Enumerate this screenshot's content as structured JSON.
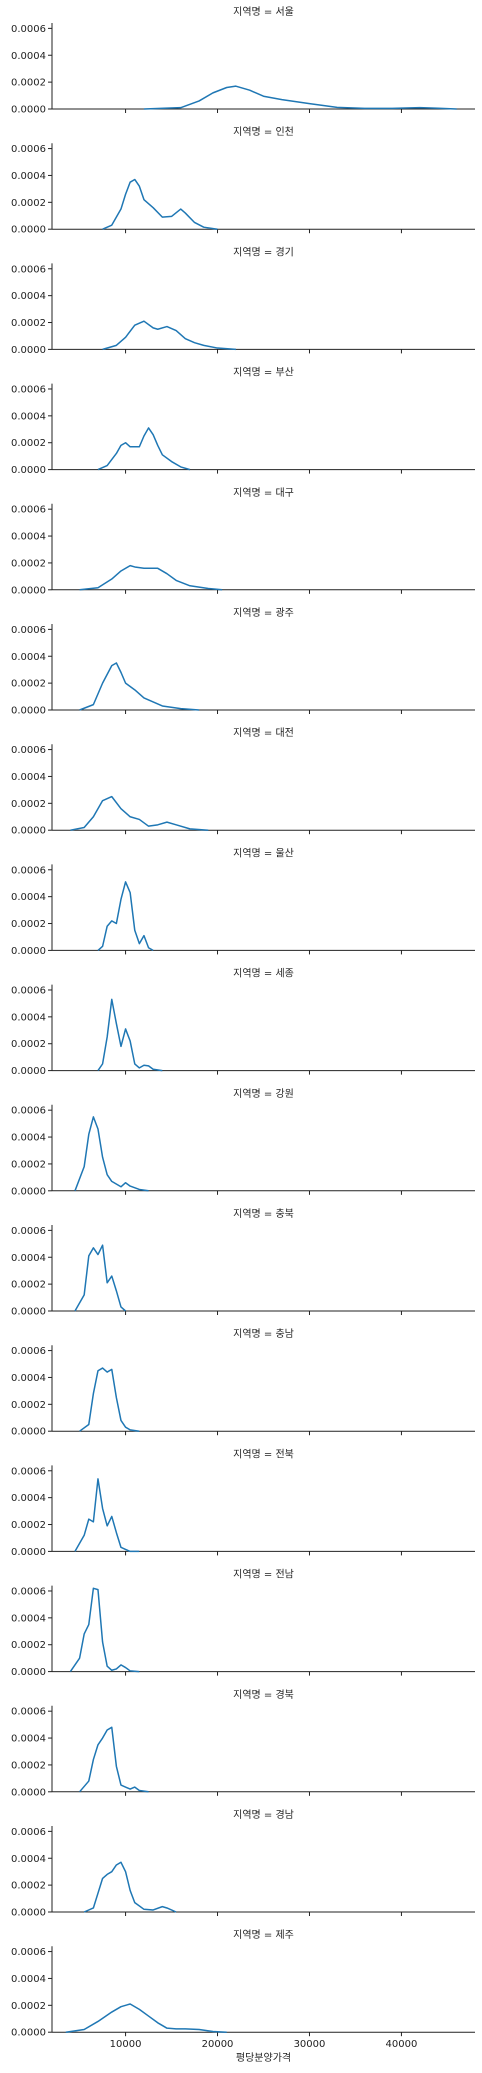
{
  "chart_data": {
    "type": "line",
    "facet_label": "지역명",
    "xlabel": "평당분양가격",
    "ylabel": "",
    "xlim": [
      2000,
      48000
    ],
    "ylim": [
      0,
      0.00064
    ],
    "x_ticks": [
      10000,
      20000,
      30000,
      40000
    ],
    "x_tick_labels": [
      "10000",
      "20000",
      "30000",
      "40000"
    ],
    "y_ticks": [
      0,
      0.0002,
      0.0004,
      0.0006
    ],
    "y_tick_labels": [
      "0.0000",
      "0.0002",
      "0.0004",
      "0.0006"
    ],
    "line_color": "#1f77b4",
    "grid": false,
    "panels": [
      {
        "title": "지역명 = 서울",
        "x": [
          12000,
          16000,
          18000,
          19500,
          21000,
          22000,
          23500,
          25000,
          27000,
          30000,
          33000,
          36000,
          39000,
          42000,
          44000,
          46000
        ],
        "y": [
          0,
          1e-05,
          6e-05,
          0.00012,
          0.00016,
          0.00017,
          0.00014,
          9.5e-05,
          7e-05,
          4e-05,
          1.2e-05,
          5e-06,
          5e-06,
          1e-05,
          6e-06,
          0
        ]
      },
      {
        "title": "지역명 = 인천",
        "x": [
          7500,
          8500,
          9500,
          10000,
          10500,
          11000,
          11500,
          12000,
          13000,
          14000,
          15000,
          16000,
          16500,
          17500,
          18500,
          20000
        ],
        "y": [
          0,
          3e-05,
          0.00015,
          0.00026,
          0.00035,
          0.00037,
          0.00032,
          0.00022,
          0.00016,
          9e-05,
          9.5e-05,
          0.00015,
          0.00012,
          5e-05,
          1.5e-05,
          0
        ]
      },
      {
        "title": "지역명 = 경기",
        "x": [
          7500,
          9000,
          10000,
          11000,
          12000,
          13000,
          13500,
          14500,
          15500,
          16500,
          17500,
          18500,
          20000,
          22000
        ],
        "y": [
          0,
          3e-05,
          9e-05,
          0.00018,
          0.00021,
          0.00016,
          0.00015,
          0.00017,
          0.00014,
          8e-05,
          5e-05,
          3e-05,
          1e-05,
          0
        ]
      },
      {
        "title": "지역명 = 부산",
        "x": [
          7000,
          8000,
          9000,
          9500,
          10000,
          10500,
          11500,
          12000,
          12500,
          13000,
          13500,
          14000,
          15000,
          16000,
          17000
        ],
        "y": [
          0,
          3e-05,
          0.00012,
          0.00018,
          0.0002,
          0.00017,
          0.00017,
          0.00025,
          0.00031,
          0.00026,
          0.00018,
          0.00011,
          6e-05,
          2e-05,
          0
        ]
      },
      {
        "title": "지역명 = 대구",
        "x": [
          5000,
          7000,
          8500,
          9500,
          10500,
          11000,
          12000,
          12500,
          13500,
          14500,
          15500,
          17000,
          19000,
          20500
        ],
        "y": [
          0,
          1.5e-05,
          8e-05,
          0.00014,
          0.00018,
          0.00017,
          0.00016,
          0.00016,
          0.00016,
          0.00012,
          7e-05,
          3e-05,
          1e-05,
          0
        ]
      },
      {
        "title": "지역명 = 광주",
        "x": [
          5000,
          6500,
          7500,
          8500,
          9000,
          9500,
          10000,
          11000,
          12000,
          13000,
          14000,
          16000,
          18000
        ],
        "y": [
          0,
          4e-05,
          0.0002,
          0.00033,
          0.00035,
          0.00028,
          0.0002,
          0.00015,
          9e-05,
          6e-05,
          3e-05,
          1e-05,
          0
        ]
      },
      {
        "title": "지역명 = 대전",
        "x": [
          4000,
          5500,
          6500,
          7500,
          8500,
          9500,
          10500,
          11500,
          12500,
          13500,
          14500,
          15500,
          17000,
          19000
        ],
        "y": [
          0,
          2e-05,
          0.0001,
          0.00022,
          0.00025,
          0.00016,
          0.0001,
          8e-05,
          3e-05,
          4e-05,
          6e-05,
          4e-05,
          1e-05,
          0
        ]
      },
      {
        "title": "지역명 = 울산",
        "x": [
          7000,
          7500,
          8000,
          8500,
          9000,
          9500,
          10000,
          10500,
          11000,
          11500,
          12000,
          12500,
          13000
        ],
        "y": [
          0,
          3e-05,
          0.00018,
          0.00022,
          0.0002,
          0.00038,
          0.00051,
          0.00043,
          0.00015,
          5e-05,
          0.00011,
          2e-05,
          0
        ]
      },
      {
        "title": "지역명 = 세종",
        "x": [
          7000,
          7500,
          8000,
          8500,
          9000,
          9500,
          10000,
          10500,
          11000,
          11500,
          12000,
          12500,
          13000,
          14000
        ],
        "y": [
          0,
          5e-05,
          0.00025,
          0.00053,
          0.00035,
          0.00018,
          0.00031,
          0.00022,
          5e-05,
          2e-05,
          4e-05,
          3.5e-05,
          1e-05,
          0
        ]
      },
      {
        "title": "지역명 = 강원",
        "x": [
          4500,
          5500,
          6000,
          6500,
          7000,
          7500,
          8000,
          8500,
          9500,
          10000,
          10500,
          11500,
          12500
        ],
        "y": [
          0,
          0.00018,
          0.00042,
          0.00055,
          0.00046,
          0.00025,
          0.00012,
          7e-05,
          3e-05,
          6e-05,
          3.5e-05,
          1e-05,
          0
        ]
      },
      {
        "title": "지역명 = 충북",
        "x": [
          4500,
          5500,
          6000,
          6500,
          7000,
          7500,
          8000,
          8500,
          9000,
          9500,
          10000
        ],
        "y": [
          0,
          0.00012,
          0.00041,
          0.00047,
          0.00042,
          0.00049,
          0.00021,
          0.00026,
          0.00015,
          3e-05,
          0
        ]
      },
      {
        "title": "지역명 = 충남",
        "x": [
          5000,
          6000,
          6500,
          7000,
          7500,
          8000,
          8500,
          9000,
          9500,
          10000,
          10500,
          11500
        ],
        "y": [
          0,
          5e-05,
          0.00028,
          0.00045,
          0.00047,
          0.00044,
          0.00046,
          0.00025,
          8e-05,
          3e-05,
          1e-05,
          0
        ]
      },
      {
        "title": "지역명 = 전북",
        "x": [
          4500,
          5500,
          6000,
          6500,
          7000,
          7500,
          8000,
          8500,
          9000,
          9500,
          10000,
          10500,
          11500
        ],
        "y": [
          0,
          0.00012,
          0.00024,
          0.00022,
          0.00054,
          0.00032,
          0.00019,
          0.00026,
          0.00014,
          3e-05,
          1.5e-05,
          0,
          0
        ]
      },
      {
        "title": "지역명 = 전남",
        "x": [
          4000,
          5000,
          5500,
          6000,
          6500,
          7000,
          7500,
          8000,
          8500,
          9000,
          9500,
          10000,
          10500,
          11500
        ],
        "y": [
          0,
          0.0001,
          0.00028,
          0.00035,
          0.00062,
          0.00061,
          0.00022,
          4e-05,
          1e-05,
          2e-05,
          5e-05,
          3e-05,
          5e-06,
          0
        ]
      },
      {
        "title": "지역명 = 경북",
        "x": [
          5000,
          6000,
          6500,
          7000,
          7500,
          8000,
          8500,
          9000,
          9500,
          10500,
          11000,
          11500,
          12500
        ],
        "y": [
          0,
          8e-05,
          0.00024,
          0.00035,
          0.0004,
          0.00046,
          0.00048,
          0.00019,
          5e-05,
          2e-05,
          3.5e-05,
          1e-05,
          0
        ]
      },
      {
        "title": "지역명 = 경남",
        "x": [
          5500,
          6500,
          7000,
          7500,
          8000,
          8500,
          9000,
          9500,
          10000,
          10500,
          11000,
          12000,
          13000,
          14000,
          14500,
          15500
        ],
        "y": [
          0,
          3e-05,
          0.00014,
          0.00025,
          0.00028,
          0.0003,
          0.00035,
          0.00037,
          0.0003,
          0.00016,
          7e-05,
          2e-05,
          1.5e-05,
          4e-05,
          3e-05,
          0
        ]
      },
      {
        "title": "지역명 = 제주",
        "x": [
          3500,
          5500,
          7000,
          8500,
          9500,
          10500,
          11500,
          12500,
          13500,
          14500,
          15500,
          16500,
          18000,
          19500,
          21000
        ],
        "y": [
          0,
          2e-05,
          8e-05,
          0.00015,
          0.00019,
          0.00021,
          0.00017,
          0.00012,
          7e-05,
          3e-05,
          2.5e-05,
          2.5e-05,
          2e-05,
          5e-06,
          0
        ]
      }
    ]
  }
}
